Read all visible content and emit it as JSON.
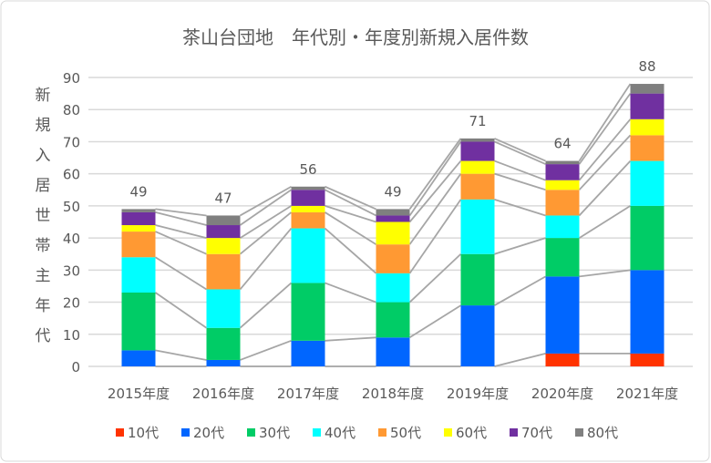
{
  "chart_data": {
    "type": "bar",
    "stacked": true,
    "title": "茶山台団地　年代別・年度別新規入居件数",
    "ylabel": "新規入居世帯主年代",
    "xlabel": "",
    "ylim": [
      0,
      90
    ],
    "yticks": [
      0,
      10,
      20,
      30,
      40,
      50,
      60,
      70,
      80,
      90
    ],
    "grid": true,
    "series_lines": true,
    "legend_position": "bottom",
    "categories": [
      "2015年度",
      "2016年度",
      "2017年度",
      "2018年度",
      "2019年度",
      "2020年度",
      "2021年度"
    ],
    "totals": [
      49,
      47,
      56,
      49,
      71,
      64,
      88
    ],
    "series": [
      {
        "name": "10代",
        "color": "#FF3300",
        "values": [
          0,
          0,
          0,
          0,
          0,
          4,
          4
        ]
      },
      {
        "name": "20代",
        "color": "#0066FF",
        "values": [
          5,
          2,
          8,
          9,
          19,
          24,
          26
        ]
      },
      {
        "name": "30代",
        "color": "#00CC66",
        "values": [
          18,
          10,
          18,
          11,
          16,
          12,
          20
        ]
      },
      {
        "name": "40代",
        "color": "#00FFFF",
        "values": [
          11,
          12,
          17,
          9,
          17,
          7,
          14
        ]
      },
      {
        "name": "50代",
        "color": "#FF9933",
        "values": [
          8,
          11,
          5,
          9,
          8,
          8,
          8
        ]
      },
      {
        "name": "60代",
        "color": "#FFFF00",
        "values": [
          2,
          5,
          2,
          7,
          4,
          3,
          5
        ]
      },
      {
        "name": "70代",
        "color": "#7030A0",
        "values": [
          4,
          4,
          5,
          2,
          6,
          5,
          8
        ]
      },
      {
        "name": "80代",
        "color": "#808080",
        "values": [
          1,
          3,
          1,
          2,
          1,
          1,
          3
        ]
      }
    ]
  }
}
